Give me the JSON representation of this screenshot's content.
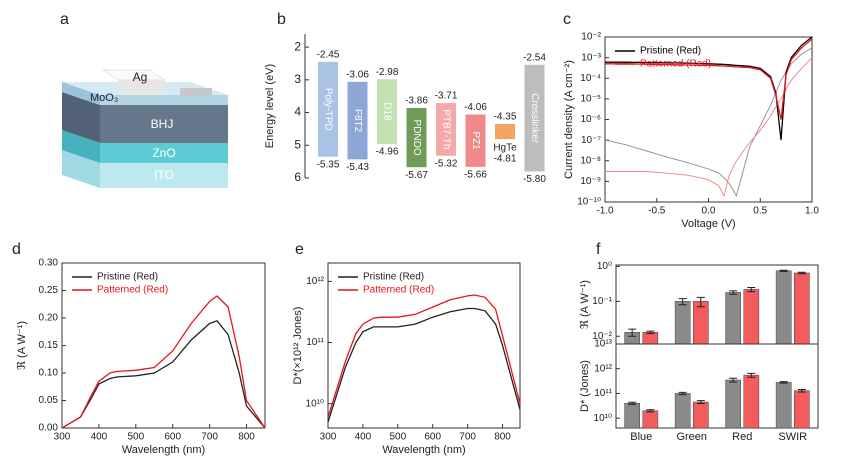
{
  "device_diagram": {
    "panel_label": "a",
    "layers": [
      "Ag",
      "MoO₃",
      "BHJ",
      "ZnO",
      "ITO"
    ]
  },
  "chart_data": [
    {
      "type": "energy_levels",
      "panel_label": "b",
      "y_label": "Energy level (eV)",
      "materials": [
        "Poly-TPD",
        "F8T2",
        "D18",
        "PDNDO",
        "PTB7-Th",
        "PZ1",
        "HgTe",
        "Crosslinker"
      ],
      "lumo": [
        -2.45,
        -3.06,
        -2.98,
        -3.86,
        -3.71,
        -4.06,
        -4.35,
        -2.54
      ],
      "homo": [
        -5.35,
        -5.43,
        -4.96,
        -5.67,
        -5.32,
        -5.66,
        -4.81,
        -5.8
      ],
      "homo_labels": [
        "-5.35",
        "-5.43",
        "-4.96",
        "-5.67",
        "-5.32",
        "-5.66",
        "-4.81",
        "-5.80"
      ],
      "colors": [
        "#a9c2e6",
        "#8ea6d6",
        "#c5e0b3",
        "#6f9a58",
        "#f4a9a9",
        "#f08a8a",
        "#f4a460",
        "#bdbdbd"
      ],
      "ylim": [
        -6,
        -1.6
      ],
      "yticks": [
        {
          "value": -2,
          "label": "2"
        },
        {
          "value": -3,
          "label": "3"
        },
        {
          "value": -4,
          "label": "4"
        },
        {
          "value": -5,
          "label": "5"
        },
        {
          "value": -6,
          "label": "6"
        }
      ]
    },
    {
      "type": "line",
      "panel_label": "c",
      "x_label": "Voltage (V)",
      "y_label": "Current density (A cm⁻²)",
      "log_y": true,
      "legend": "upper-left",
      "x": [
        -1.0,
        -0.8,
        -0.6,
        -0.4,
        -0.2,
        0.0,
        0.1,
        0.15,
        0.2,
        0.27,
        0.4,
        0.5,
        0.6,
        0.65,
        0.7,
        0.75,
        0.8,
        0.9,
        1.0
      ],
      "xlim": [
        -1,
        1
      ],
      "xticks": [
        {
          "value": -1,
          "label": "-1.0"
        },
        {
          "value": -0.5,
          "label": "-0.5"
        },
        {
          "value": 0,
          "label": "0.0"
        },
        {
          "value": 0.5,
          "label": "0.5"
        },
        {
          "value": 1,
          "label": "1.0"
        }
      ],
      "ylim": [
        1e-10,
        0.01
      ],
      "yticks": [
        {
          "value": 1e-10,
          "label": "10⁻¹⁰"
        },
        {
          "value": 1e-09,
          "label": "10⁻⁹"
        },
        {
          "value": 1e-08,
          "label": "10⁻⁸"
        },
        {
          "value": 1e-07,
          "label": "10⁻⁷"
        },
        {
          "value": 1e-06,
          "label": "10⁻⁶"
        },
        {
          "value": 1e-05,
          "label": "10⁻⁵"
        },
        {
          "value": 0.0001,
          "label": "10⁻⁴"
        },
        {
          "value": 0.001,
          "label": "10⁻³"
        },
        {
          "value": 0.01,
          "label": "10⁻²"
        }
      ],
      "series": [
        {
          "color": "#8c8c8c",
          "values": [
            1e-07,
            6e-08,
            3e-08,
            1.5e-08,
            8e-09,
            4e-09,
            2.5e-09,
            1.5e-09,
            8e-10,
            2e-10,
            5e-08,
            5e-07,
            5e-06,
            2e-05,
            8e-05,
            0.0002,
            0.0005,
            0.0015,
            0.003
          ]
        },
        {
          "color": "#f08080",
          "values": [
            3e-09,
            3e-09,
            3e-09,
            2.5e-09,
            2e-09,
            1.2e-09,
            6e-10,
            2e-10,
            2e-09,
            1e-08,
            8e-08,
            3e-07,
            1.5e-06,
            4e-06,
            1e-05,
            3e-05,
            8e-05,
            0.0003,
            0.001
          ]
        },
        {
          "name": "Pristine (Red)",
          "color": "#000000",
          "values": [
            0.0006,
            0.0006,
            0.00058,
            0.00056,
            0.00054,
            0.0005,
            0.00048,
            0.00047,
            0.00045,
            0.00042,
            0.00038,
            0.0003,
            0.00012,
            2e-05,
            1e-07,
            0.0002,
            0.001,
            0.004,
            0.01
          ]
        },
        {
          "name": "Patterned (Red)",
          "color": "#e8141c",
          "values": [
            0.0005,
            0.0005,
            0.00048,
            0.00046,
            0.00044,
            0.00042,
            0.0004,
            0.00039,
            0.00038,
            0.00036,
            0.00033,
            0.00026,
            0.0001,
            1.5e-05,
            1e-06,
            0.00015,
            0.0008,
            0.003,
            0.008
          ]
        }
      ]
    },
    {
      "type": "line",
      "panel_label": "d",
      "x_label": "Wavelength (nm)",
      "y_label": "ℜ (A W⁻¹)",
      "legend": "upper-left",
      "x": [
        300,
        350,
        380,
        400,
        430,
        450,
        500,
        550,
        600,
        650,
        700,
        720,
        750,
        780,
        800,
        850
      ],
      "xlim": [
        300,
        850
      ],
      "xticks": [
        300,
        400,
        500,
        600,
        700,
        800
      ],
      "ylim": [
        0,
        0.3
      ],
      "yticks": [
        {
          "value": 0,
          "label": "0.00"
        },
        {
          "value": 0.05,
          "label": "0.05"
        },
        {
          "value": 0.1,
          "label": "0.10"
        },
        {
          "value": 0.15,
          "label": "0.15"
        },
        {
          "value": 0.2,
          "label": "0.20"
        },
        {
          "value": 0.25,
          "label": "0.25"
        },
        {
          "value": 0.3,
          "label": "0.30"
        }
      ],
      "series": [
        {
          "name": "Pristine (Red)",
          "color": "#222222",
          "values": [
            0.0,
            0.02,
            0.055,
            0.08,
            0.09,
            0.093,
            0.095,
            0.1,
            0.12,
            0.16,
            0.19,
            0.195,
            0.17,
            0.1,
            0.04,
            0.0
          ]
        },
        {
          "name": "Patterned (Red)",
          "color": "#e8141c",
          "values": [
            0.0,
            0.02,
            0.06,
            0.085,
            0.1,
            0.103,
            0.105,
            0.11,
            0.14,
            0.19,
            0.23,
            0.24,
            0.22,
            0.13,
            0.05,
            0.0
          ]
        }
      ]
    },
    {
      "type": "line",
      "panel_label": "e",
      "x_label": "Wavelength (nm)",
      "y_label": "D*(×10¹² Jones)",
      "log_y": true,
      "legend": "upper-left",
      "x": [
        300,
        350,
        380,
        400,
        430,
        450,
        500,
        550,
        600,
        650,
        700,
        720,
        750,
        780,
        800,
        850
      ],
      "xlim": [
        300,
        850
      ],
      "xticks": [
        300,
        400,
        500,
        600,
        700,
        800
      ],
      "ylim": [
        4000000000.0,
        2000000000000.0
      ],
      "yticks": [
        {
          "value": 10000000000.0,
          "label": "10¹⁰"
        },
        {
          "value": 100000000000.0,
          "label": "10¹¹"
        },
        {
          "value": 1000000000000.0,
          "label": "10¹²"
        }
      ],
      "series": [
        {
          "name": "Pristine (Red)",
          "color": "#222222",
          "values": [
            5000000000.0,
            40000000000.0,
            100000000000.0,
            150000000000.0,
            180000000000.0,
            180000000000.0,
            180000000000.0,
            200000000000.0,
            260000000000.0,
            320000000000.0,
            360000000000.0,
            360000000000.0,
            330000000000.0,
            200000000000.0,
            90000000000.0,
            8000000000.0
          ]
        },
        {
          "name": "Patterned (Red)",
          "color": "#e8141c",
          "values": [
            6000000000.0,
            50000000000.0,
            140000000000.0,
            200000000000.0,
            250000000000.0,
            260000000000.0,
            260000000000.0,
            290000000000.0,
            380000000000.0,
            500000000000.0,
            580000000000.0,
            600000000000.0,
            550000000000.0,
            350000000000.0,
            130000000000.0,
            10000000000.0
          ]
        }
      ]
    },
    {
      "type": "bar",
      "panel_label": "f",
      "y_label": "ℜ (A W⁻¹)",
      "log_y": true,
      "ylim": [
        0.006,
        1.1
      ],
      "yticks": [
        {
          "value": 0.01,
          "label": "10⁻²"
        },
        {
          "value": 0.1,
          "label": "10⁻¹"
        },
        {
          "value": 1,
          "label": "10⁰"
        }
      ],
      "series": [
        {
          "color": "#8a8a8a",
          "values": [
            0.013,
            0.1,
            0.18,
            0.75
          ],
          "errors": [
            0.003,
            0.02,
            0.02,
            0.03
          ]
        },
        {
          "color": "#f25c5c",
          "values": [
            0.013,
            0.1,
            0.22,
            0.65
          ],
          "errors": [
            0.001,
            0.03,
            0.03,
            0.03
          ]
        }
      ]
    },
    {
      "type": "bar",
      "y_label": "D* (Jones)",
      "log_y": true,
      "categories": [
        "Blue",
        "Green",
        "Red",
        "SWIR"
      ],
      "ylim": [
        4000000000.0,
        10000000000000.0
      ],
      "yticks": [
        {
          "value": 10000000000.0,
          "label": "10¹⁰"
        },
        {
          "value": 100000000000.0,
          "label": "10¹¹"
        },
        {
          "value": 1000000000000.0,
          "label": "10¹²"
        },
        {
          "value": 10000000000000.0,
          "label": "10¹³"
        }
      ],
      "series": [
        {
          "color": "#8a8a8a",
          "values": [
            40000000000.0,
            100000000000.0,
            350000000000.0,
            280000000000.0
          ],
          "errors": [
            4000000000.0,
            10000000000.0,
            60000000000.0,
            20000000000.0
          ]
        },
        {
          "color": "#f25c5c",
          "values": [
            20000000000.0,
            45000000000.0,
            550000000000.0,
            130000000000.0
          ],
          "errors": [
            2000000000.0,
            6000000000.0,
            100000000000.0,
            15000000000.0
          ]
        }
      ]
    }
  ]
}
